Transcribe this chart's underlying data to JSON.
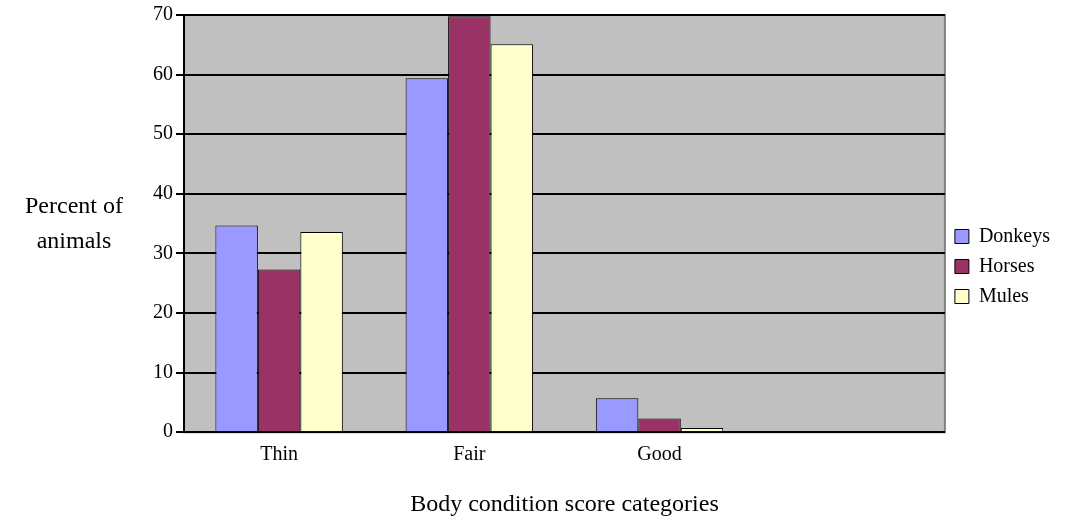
{
  "chart_data": {
    "type": "bar",
    "xlabel": "Body condition score categories",
    "ylabel": "Percent of animals",
    "categories": [
      "Thin",
      "Fair",
      "Good",
      null
    ],
    "series": [
      {
        "name": "Donkeys",
        "color": "#9999ff",
        "values": [
          34.7,
          59.4,
          5.7,
          null
        ]
      },
      {
        "name": "Horses",
        "color": "#993366",
        "values": [
          27.3,
          69.8,
          2.3,
          null
        ]
      },
      {
        "name": "Mules",
        "color": "#ffffcc",
        "values": [
          33.6,
          65.1,
          0.7,
          null
        ]
      }
    ],
    "ylim": [
      0,
      70
    ],
    "yticks": [
      0,
      10,
      20,
      30,
      40,
      50,
      60,
      70
    ],
    "grid": "y",
    "legend": "right"
  }
}
